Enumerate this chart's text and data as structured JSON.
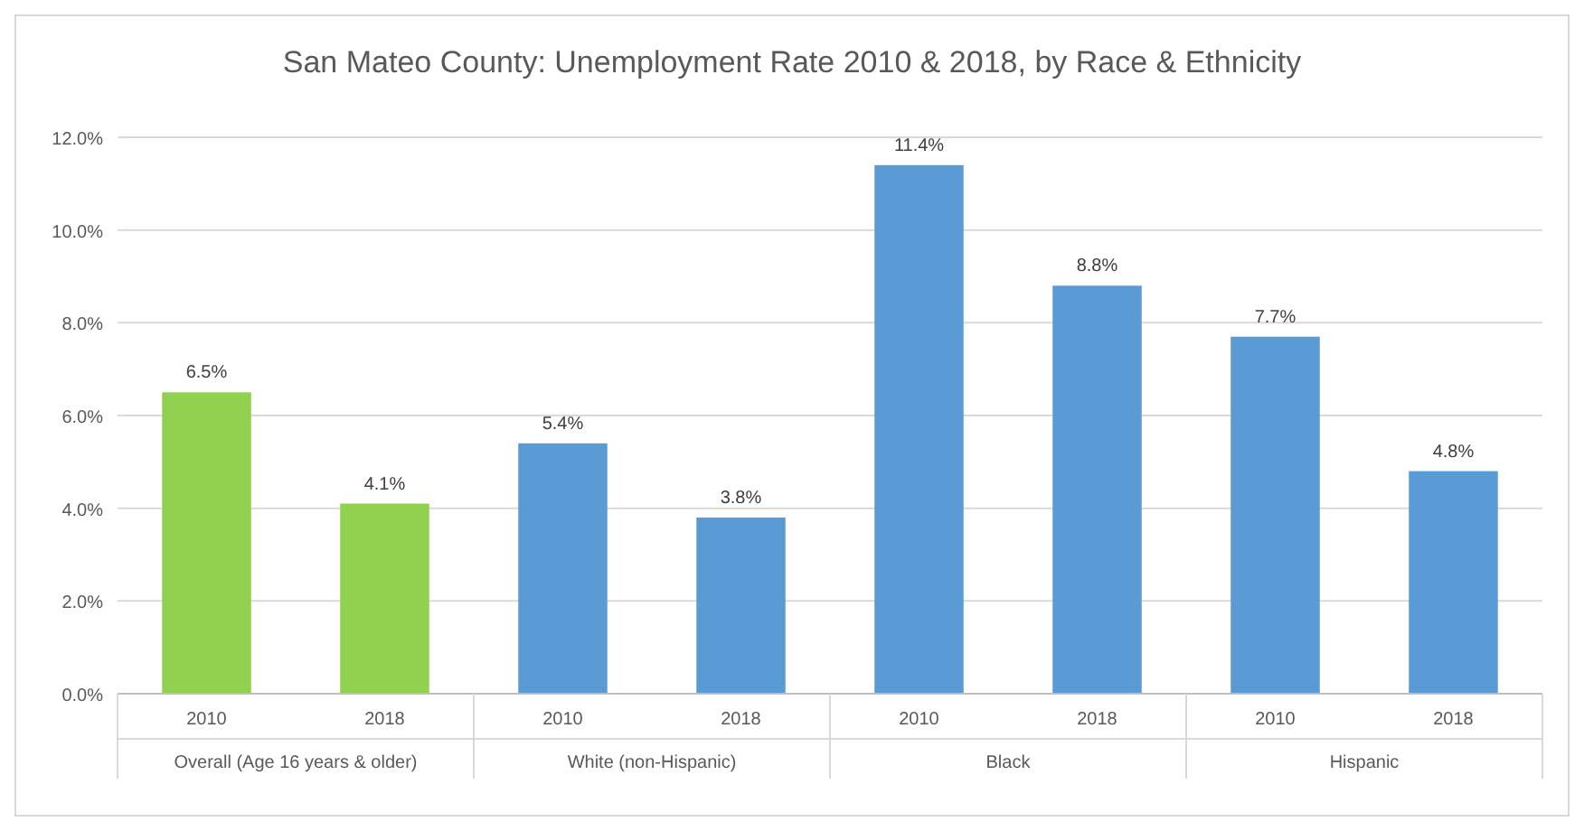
{
  "chart_data": {
    "type": "bar",
    "title": "San Mateo County: Unemployment Rate 2010 & 2018, by Race & Ethnicity",
    "categories": [
      "2010",
      "2018",
      "2010",
      "2018",
      "2010",
      "2018",
      "2010",
      "2018"
    ],
    "values": [
      6.5,
      4.1,
      5.4,
      3.8,
      11.4,
      8.8,
      7.7,
      4.8
    ],
    "colors": [
      "#92d050",
      "#92d050",
      "#5b9bd5",
      "#5b9bd5",
      "#5b9bd5",
      "#5b9bd5",
      "#5b9bd5",
      "#5b9bd5"
    ],
    "value_labels": [
      "6.5%",
      "4.1%",
      "5.4%",
      "3.8%",
      "11.4%",
      "8.8%",
      "7.7%",
      "4.8%"
    ],
    "ylim": [
      0,
      12
    ],
    "yticks": [
      {
        "value": 0,
        "label": "0.0%"
      },
      {
        "value": 2,
        "label": "2.0%"
      },
      {
        "value": 4,
        "label": "4.0%"
      },
      {
        "value": 6,
        "label": "6.0%"
      },
      {
        "value": 8,
        "label": "8.0%"
      },
      {
        "value": 10,
        "label": "10.0%"
      },
      {
        "value": 12,
        "label": "12.0%"
      }
    ],
    "grid": "y",
    "annotations": [
      "Overall (Age 16 years & older)",
      "White (non-Hispanic)",
      "Black",
      "Hispanic"
    ]
  }
}
